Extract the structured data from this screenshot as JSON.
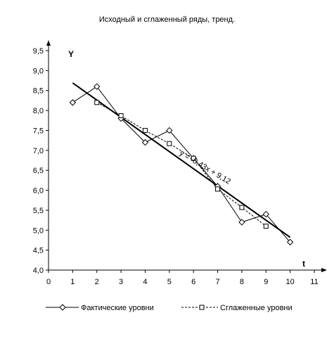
{
  "chart_data": {
    "type": "line",
    "title": "Исходный и сглаженный ряды, тренд.",
    "xlabel": "t",
    "ylabel": "Y",
    "xlim": [
      0,
      11
    ],
    "ylim": [
      4.0,
      9.5
    ],
    "x_ticks": [
      "0",
      "1",
      "2",
      "3",
      "4",
      "5",
      "6",
      "7",
      "8",
      "9",
      "10",
      "11"
    ],
    "y_ticks": [
      "4,0",
      "4,5",
      "5,0",
      "5,5",
      "6,0",
      "6,5",
      "7,0",
      "7,5",
      "8,0",
      "8,5",
      "9,0",
      "9,5"
    ],
    "grid": false,
    "legend_position": "bottom",
    "series": [
      {
        "name": "Фактические уровни",
        "marker": "diamond",
        "line_style": "solid",
        "x": [
          1,
          2,
          3,
          4,
          5,
          6,
          7,
          8,
          9,
          10
        ],
        "values": [
          8.2,
          8.6,
          7.8,
          7.2,
          7.5,
          6.8,
          6.1,
          5.2,
          5.4,
          4.7
        ]
      },
      {
        "name": "Сглаженные уровни",
        "marker": "square",
        "line_style": "dashed",
        "x": [
          2,
          3,
          4,
          5,
          6,
          7,
          8,
          9
        ],
        "values": [
          8.2,
          7.87,
          7.5,
          7.17,
          6.8,
          6.03,
          5.57,
          5.1
        ]
      }
    ],
    "trendline": {
      "equation": "y = -0,43x + 9,12",
      "slope": -0.43,
      "intercept": 9.12,
      "x_range": [
        1,
        10
      ]
    }
  }
}
